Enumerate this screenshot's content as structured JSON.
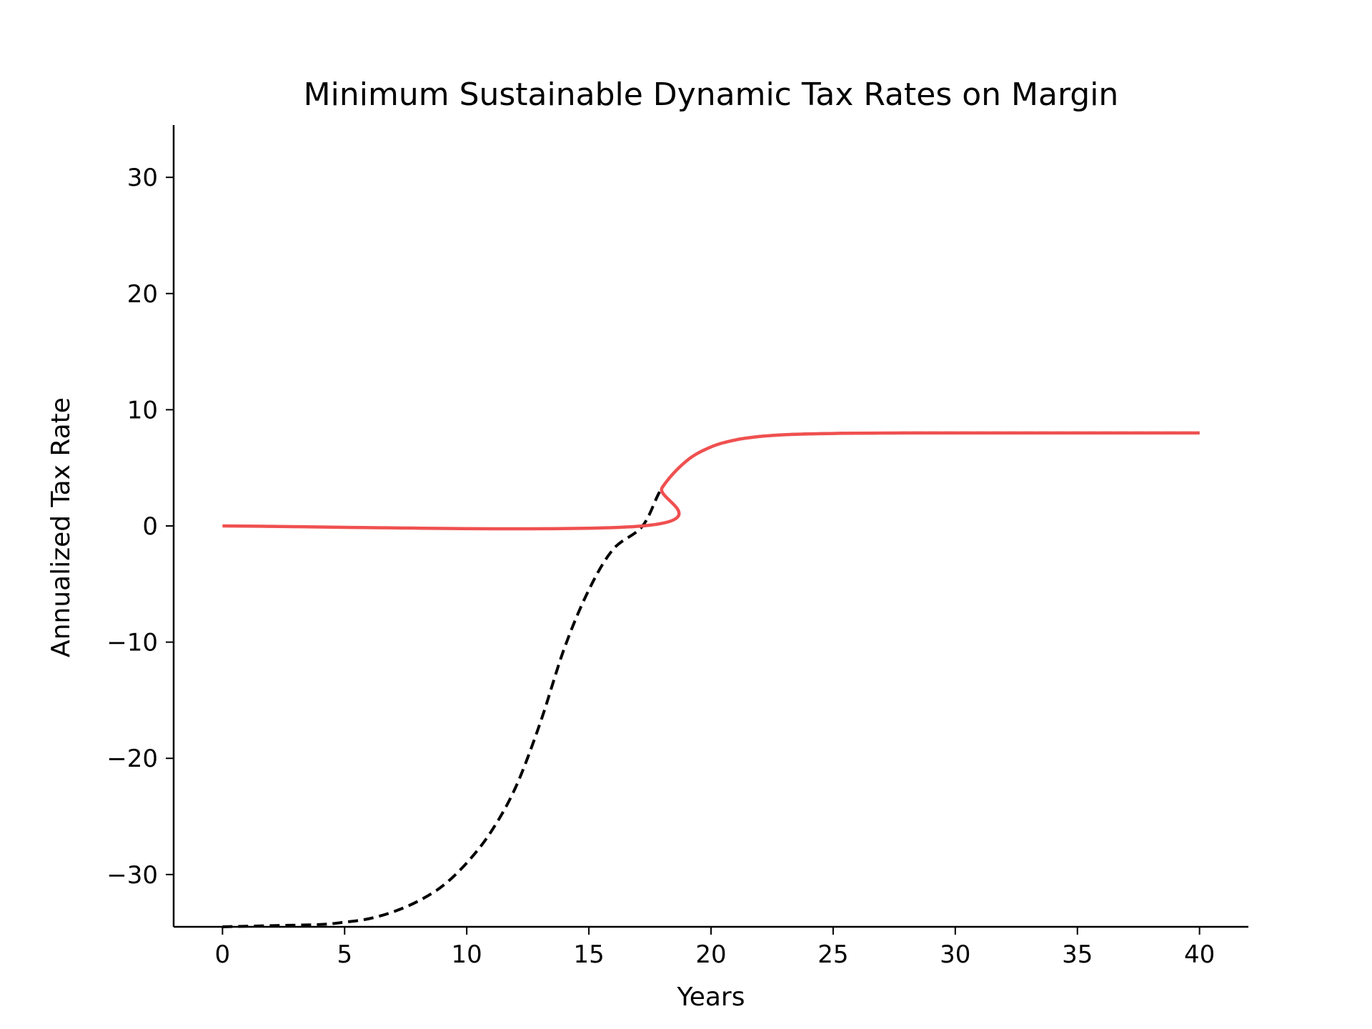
{
  "chart_data": {
    "type": "line",
    "title": "Minimum Sustainable Dynamic Tax Rates on Margin",
    "xlabel": "Years",
    "ylabel": "Annualized Tax Rate",
    "xlim": [
      -2,
      42
    ],
    "ylim": [
      -34.5,
      34.5
    ],
    "x_ticks": [
      0,
      5,
      10,
      15,
      20,
      25,
      30,
      35,
      40
    ],
    "y_ticks": [
      -30,
      -20,
      -10,
      0,
      10,
      20,
      30
    ],
    "x_tick_labels": [
      "0",
      "5",
      "10",
      "15",
      "20",
      "25",
      "30",
      "35",
      "40"
    ],
    "y_tick_labels": [
      "−30",
      "−20",
      "−10",
      "0",
      "10",
      "20",
      "30"
    ],
    "grid": false,
    "spines": "left-bottom",
    "series": [
      {
        "style": "dashed",
        "color": "#000000",
        "x": [
          0,
          2,
          4,
          5,
          6,
          7,
          8,
          9,
          10,
          11,
          12,
          13,
          14,
          15,
          16,
          17.2,
          18,
          19,
          20,
          21,
          22,
          23,
          24,
          25,
          26,
          28,
          30,
          35,
          40
        ],
        "y": [
          -34.5,
          -34.4,
          -34.3,
          -34.1,
          -33.8,
          -33.2,
          -32.3,
          -31.0,
          -29.0,
          -26.3,
          -22.5,
          -17.0,
          -10.5,
          -5.5,
          -2.0,
          0,
          3.3,
          5.6,
          6.8,
          7.4,
          7.7,
          7.85,
          7.92,
          7.96,
          7.98,
          8.0,
          8.0,
          8.0,
          8.0
        ]
      },
      {
        "style": "solid",
        "color": "#f05050",
        "x": [
          0,
          17.2,
          18,
          19,
          20,
          21,
          22,
          23,
          24,
          25,
          26,
          28,
          30,
          35,
          40
        ],
        "y": [
          0,
          0,
          3.3,
          5.6,
          6.8,
          7.4,
          7.7,
          7.85,
          7.92,
          7.96,
          7.98,
          8.0,
          8.0,
          8.0,
          8.0
        ]
      }
    ]
  }
}
